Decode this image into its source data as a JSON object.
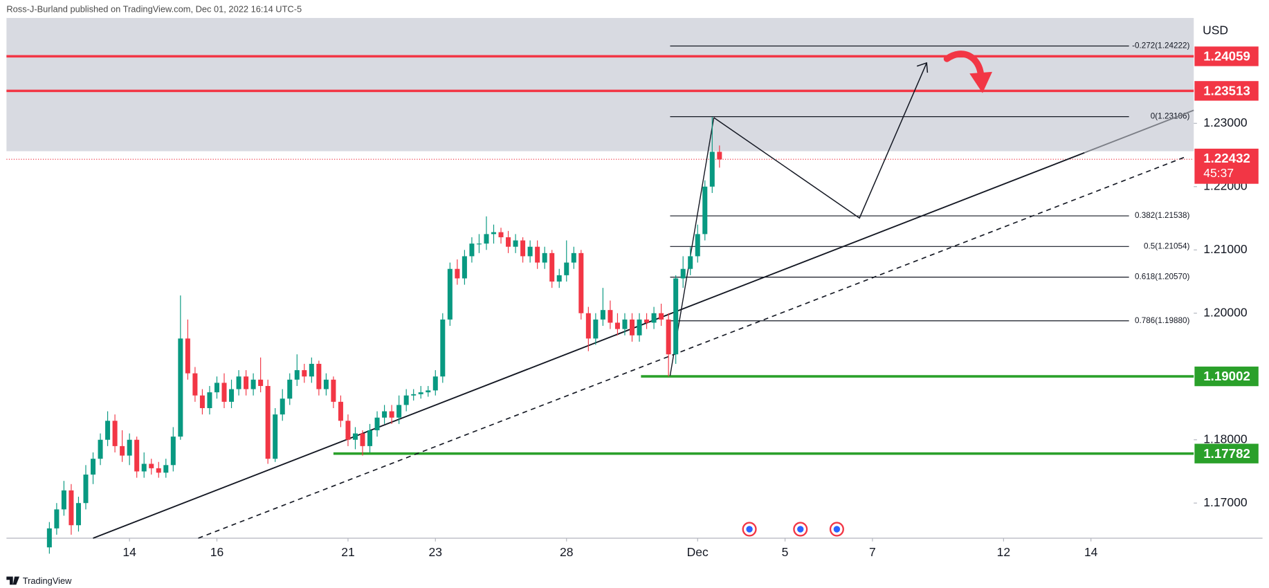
{
  "header": {
    "publisher": "Ross-J-Burland published on TradingView.com, Dec 01, 2022 16:14 UTC-5"
  },
  "footer": {
    "logo": "TradingView"
  },
  "chart_data": {
    "type": "candlestick",
    "currency": "USD",
    "up_color": "#089981",
    "down_color": "#f23645",
    "grid": false,
    "xlim": [
      -16.89,
      146.11
    ],
    "xticks": [
      {
        "value": 0,
        "label": "14"
      },
      {
        "value": 12,
        "label": "16"
      },
      {
        "value": 30,
        "label": "21"
      },
      {
        "value": 42,
        "label": "23"
      },
      {
        "value": 60,
        "label": "28"
      },
      {
        "value": 78,
        "label": "Dec"
      },
      {
        "value": 90,
        "label": "5"
      },
      {
        "value": 102,
        "label": "7"
      },
      {
        "value": 120,
        "label": "12"
      },
      {
        "value": 132,
        "label": "14"
      }
    ],
    "ylim": [
      1.16445,
      1.24665
    ],
    "yticks": [
      {
        "value": 1.17,
        "label": "1.17000"
      },
      {
        "value": 1.18,
        "label": "1.18000"
      },
      {
        "value": 1.2,
        "label": "1.20000"
      },
      {
        "value": 1.21,
        "label": "1.21000"
      },
      {
        "value": 1.22,
        "label": "1.22000"
      },
      {
        "value": 1.23,
        "label": "1.23000"
      }
    ],
    "x": [
      -11,
      -10,
      -9,
      -8,
      -7,
      -6,
      -5,
      -4,
      -3,
      -2,
      -1,
      0,
      1,
      2,
      3,
      4,
      5,
      6,
      7,
      8,
      9,
      10,
      11,
      12,
      13,
      14,
      15,
      16,
      17,
      18,
      19,
      20,
      21,
      22,
      23,
      24,
      25,
      26,
      27,
      28,
      29,
      30,
      31,
      32,
      33,
      34,
      35,
      36,
      37,
      38,
      39,
      40,
      41,
      42,
      43,
      44,
      45,
      46,
      47,
      48,
      49,
      50,
      51,
      52,
      53,
      54,
      55,
      56,
      57,
      58,
      59,
      60,
      61,
      62,
      63,
      64,
      65,
      66,
      67,
      68,
      69,
      70,
      71,
      72,
      73,
      74,
      75,
      76,
      77,
      78,
      79,
      80,
      81
    ],
    "open": [
      1.163,
      1.166,
      1.169,
      1.172,
      1.1665,
      1.17,
      1.1745,
      1.177,
      1.18,
      1.183,
      1.179,
      1.1775,
      1.18,
      1.175,
      1.1762,
      1.1755,
      1.1748,
      1.176,
      1.1805,
      1.196,
      1.1905,
      1.187,
      1.185,
      1.1875,
      1.189,
      1.186,
      1.188,
      1.19,
      1.188,
      1.1895,
      1.1885,
      1.177,
      1.184,
      1.1865,
      1.1895,
      1.191,
      1.19,
      1.192,
      1.188,
      1.1895,
      1.186,
      1.183,
      1.18,
      1.181,
      1.179,
      1.1815,
      1.1835,
      1.1845,
      1.1835,
      1.1855,
      1.187,
      1.1872,
      1.1875,
      1.1878,
      1.19,
      1.199,
      1.207,
      1.2055,
      1.209,
      1.211,
      1.211,
      1.2125,
      1.2128,
      1.212,
      1.2105,
      1.2115,
      1.209,
      1.2105,
      1.208,
      1.2095,
      1.205,
      1.206,
      1.208,
      1.2095,
      1.2,
      1.196,
      1.199,
      1.2005,
      1.1985,
      1.1975,
      1.199,
      1.1965,
      1.199,
      1.1985,
      1.2,
      1.199,
      1.1935,
      1.2055,
      1.207,
      1.209,
      1.2125,
      1.22,
      1.2255
    ],
    "high": [
      1.167,
      1.17,
      1.1735,
      1.173,
      1.171,
      1.176,
      1.178,
      1.181,
      1.1845,
      1.184,
      1.1815,
      1.181,
      1.1805,
      1.178,
      1.177,
      1.1765,
      1.177,
      1.182,
      1.2028,
      1.199,
      1.1915,
      1.188,
      1.1885,
      1.19,
      1.1905,
      1.1895,
      1.191,
      1.191,
      1.1905,
      1.193,
      1.1895,
      1.185,
      1.188,
      1.1905,
      1.1935,
      1.192,
      1.193,
      1.1925,
      1.1905,
      1.19,
      1.187,
      1.184,
      1.182,
      1.1815,
      1.1825,
      1.1845,
      1.1855,
      1.1855,
      1.187,
      1.188,
      1.188,
      1.1885,
      1.1885,
      1.191,
      1.2,
      1.208,
      1.2085,
      1.21,
      1.212,
      1.2125,
      1.2153,
      1.214,
      1.2135,
      1.213,
      1.2125,
      1.212,
      1.2115,
      1.2115,
      1.2105,
      1.21,
      1.207,
      1.2115,
      1.2105,
      1.21,
      1.201,
      1.2,
      1.204,
      1.202,
      1.2,
      1.2,
      1.2,
      1.2,
      1.2,
      1.201,
      1.2015,
      1.2,
      1.206,
      1.209,
      1.2105,
      1.214,
      1.221,
      1.231,
      1.2265
    ],
    "low": [
      1.162,
      1.165,
      1.168,
      1.165,
      1.1655,
      1.169,
      1.173,
      1.176,
      1.179,
      1.178,
      1.1765,
      1.176,
      1.174,
      1.174,
      1.1745,
      1.174,
      1.174,
      1.175,
      1.18,
      1.1895,
      1.186,
      1.184,
      1.184,
      1.1865,
      1.185,
      1.185,
      1.187,
      1.187,
      1.187,
      1.1875,
      1.1762,
      1.1765,
      1.183,
      1.1855,
      1.1885,
      1.189,
      1.189,
      1.187,
      1.187,
      1.185,
      1.182,
      1.179,
      1.1785,
      1.1775,
      1.178,
      1.1805,
      1.1825,
      1.1825,
      1.1825,
      1.1845,
      1.1862,
      1.1865,
      1.1868,
      1.187,
      1.189,
      1.198,
      1.2045,
      1.2045,
      1.208,
      1.2095,
      1.21,
      1.211,
      1.211,
      1.2095,
      1.2095,
      1.208,
      1.208,
      1.207,
      1.207,
      1.204,
      1.204,
      1.205,
      1.207,
      1.199,
      1.194,
      1.195,
      1.198,
      1.1975,
      1.1965,
      1.1965,
      1.1955,
      1.1955,
      1.1975,
      1.1975,
      1.198,
      1.19,
      1.192,
      1.204,
      1.206,
      1.208,
      1.2115,
      1.219,
      1.223
    ],
    "close": [
      1.166,
      1.169,
      1.172,
      1.1665,
      1.17,
      1.1745,
      1.177,
      1.18,
      1.183,
      1.179,
      1.1775,
      1.18,
      1.175,
      1.1762,
      1.1755,
      1.1748,
      1.176,
      1.1805,
      1.196,
      1.1905,
      1.187,
      1.185,
      1.1875,
      1.189,
      1.186,
      1.188,
      1.19,
      1.188,
      1.1895,
      1.1885,
      1.177,
      1.184,
      1.1865,
      1.1895,
      1.191,
      1.19,
      1.192,
      1.188,
      1.1895,
      1.186,
      1.183,
      1.18,
      1.181,
      1.179,
      1.1815,
      1.1835,
      1.1845,
      1.1835,
      1.1855,
      1.187,
      1.1872,
      1.1875,
      1.1878,
      1.19,
      1.199,
      1.207,
      1.2055,
      1.209,
      1.211,
      1.211,
      1.2125,
      1.2128,
      1.212,
      1.2105,
      1.2115,
      1.209,
      1.2105,
      1.208,
      1.2095,
      1.205,
      1.206,
      1.208,
      1.2095,
      1.2,
      1.196,
      1.199,
      1.2005,
      1.1985,
      1.1975,
      1.199,
      1.1965,
      1.199,
      1.1985,
      1.2,
      1.199,
      1.1935,
      1.2055,
      1.207,
      1.209,
      1.2125,
      1.22,
      1.2255,
      1.2243
    ],
    "zone": {
      "from": 1.2256,
      "to": 1.24665,
      "color": "#d1d4dc"
    },
    "levels": [
      {
        "price": 1.24059,
        "color": "#f23645"
      },
      {
        "price": 1.23513,
        "color": "#f23645"
      },
      {
        "price": 1.19002,
        "color": "#2aa02a"
      },
      {
        "price": 1.17782,
        "color": "#2aa02a"
      }
    ],
    "last_price": 1.22432,
    "countdown": "45:37",
    "fib_levels": [
      {
        "label": "-0.272(1.24222)",
        "price": 1.24222
      },
      {
        "label": "0(1.23106)",
        "price": 1.23106
      },
      {
        "label": "0.382(1.21538)",
        "price": 1.21538
      },
      {
        "label": "0.5(1.21054)",
        "price": 1.21054
      },
      {
        "label": "0.618(1.20570)",
        "price": 1.2057
      },
      {
        "label": "0.786(1.19880)",
        "price": 1.1988
      }
    ]
  }
}
